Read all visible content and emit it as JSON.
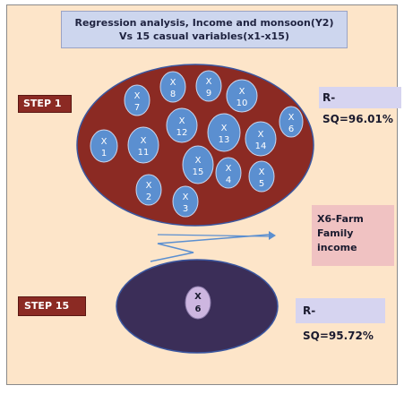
{
  "title": "Regression analysis, Income and monsoon(Y2) Vs 15 casual variables(x1-x15)",
  "step1": {
    "label": "STEP 1",
    "rsq": "R-SQ=96.01%"
  },
  "step15": {
    "label": "STEP 15",
    "rsq": "R-SQ=95.72%"
  },
  "note": {
    "line1": "X6-Farm Family",
    "line2": "income"
  },
  "variables": [
    {
      "letter": "X",
      "num": "1"
    },
    {
      "letter": "X",
      "num": "2"
    },
    {
      "letter": "X",
      "num": "3"
    },
    {
      "letter": "X",
      "num": "4"
    },
    {
      "letter": "X",
      "num": "5"
    },
    {
      "letter": "X",
      "num": "6"
    },
    {
      "letter": "X",
      "num": "7"
    },
    {
      "letter": "X",
      "num": "8"
    },
    {
      "letter": "X",
      "num": "9"
    },
    {
      "letter": "X",
      "num": "10"
    },
    {
      "letter": "X",
      "num": "11"
    },
    {
      "letter": "X",
      "num": "12"
    },
    {
      "letter": "X",
      "num": "13"
    },
    {
      "letter": "X",
      "num": "14"
    },
    {
      "letter": "X",
      "num": "15"
    }
  ],
  "selected": {
    "letter": "X",
    "num": "6"
  },
  "colors": {
    "step1_ellipse": "#8b2a23",
    "step15_ellipse": "#3b2e58",
    "bubble": "#5b8fd0",
    "selected_bubble": "#cdb6e0",
    "arrow": "#5b8fd0"
  }
}
